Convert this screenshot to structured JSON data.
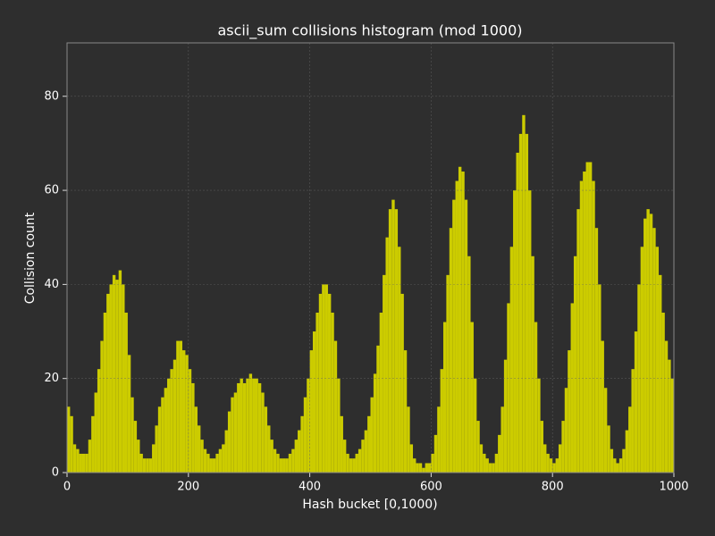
{
  "chart_data": {
    "type": "histogram",
    "title": "ascii_sum collisions histogram (mod 1000)",
    "x_label": "Hash bucket [0,1000)",
    "y_label": "Collision count",
    "color": "#cccc00",
    "grid": true,
    "xlim": [
      0,
      1000
    ],
    "ylim": [
      0,
      91.35
    ],
    "xticks": [
      0,
      200,
      400,
      600,
      800,
      1000
    ],
    "yticks": [
      0,
      20,
      40,
      60,
      80
    ],
    "bins": [
      0,
      5,
      10,
      15,
      20,
      25,
      30,
      35,
      40,
      45,
      50,
      55,
      60,
      65,
      70,
      75,
      80,
      85,
      90,
      95,
      100,
      105,
      110,
      115,
      120,
      125,
      130,
      135,
      140,
      145,
      150,
      155,
      160,
      165,
      170,
      175,
      180,
      185,
      190,
      195,
      200,
      205,
      210,
      215,
      220,
      225,
      230,
      235,
      240,
      245,
      250,
      255,
      260,
      265,
      270,
      275,
      280,
      285,
      290,
      295,
      300,
      305,
      310,
      315,
      320,
      325,
      330,
      335,
      340,
      345,
      350,
      355,
      360,
      365,
      370,
      375,
      380,
      385,
      390,
      395,
      400,
      405,
      410,
      415,
      420,
      425,
      430,
      435,
      440,
      445,
      450,
      455,
      460,
      465,
      470,
      475,
      480,
      485,
      490,
      495,
      500,
      505,
      510,
      515,
      520,
      525,
      530,
      535,
      540,
      545,
      550,
      555,
      560,
      565,
      570,
      575,
      580,
      585,
      590,
      595,
      600,
      605,
      610,
      615,
      620,
      625,
      630,
      635,
      640,
      645,
      650,
      655,
      660,
      665,
      670,
      675,
      680,
      685,
      690,
      695,
      700,
      705,
      710,
      715,
      720,
      725,
      730,
      735,
      740,
      745,
      750,
      755,
      760,
      765,
      770,
      775,
      780,
      785,
      790,
      795,
      800,
      805,
      810,
      815,
      820,
      825,
      830,
      835,
      840,
      845,
      850,
      855,
      860,
      865,
      870,
      875,
      880,
      885,
      890,
      895,
      900,
      905,
      910,
      915,
      920,
      925,
      930,
      935,
      940,
      945,
      950,
      955,
      960,
      965,
      970,
      975,
      980,
      985,
      990,
      995,
      1000
    ],
    "counts": [
      14,
      12,
      6,
      5,
      4,
      4,
      4,
      7,
      12,
      17,
      22,
      28,
      34,
      38,
      40,
      42,
      41,
      43,
      40,
      34,
      25,
      16,
      11,
      7,
      4,
      3,
      3,
      3,
      6,
      10,
      14,
      16,
      18,
      20,
      22,
      24,
      28,
      28,
      26,
      25,
      22,
      19,
      14,
      10,
      7,
      5,
      4,
      3,
      3,
      4,
      5,
      6,
      9,
      13,
      16,
      17,
      19,
      20,
      19,
      20,
      21,
      20,
      20,
      19,
      17,
      14,
      10,
      7,
      5,
      4,
      3,
      3,
      3,
      4,
      5,
      7,
      9,
      12,
      16,
      20,
      26,
      30,
      34,
      38,
      40,
      40,
      38,
      34,
      28,
      20,
      12,
      7,
      4,
      3,
      3,
      4,
      5,
      7,
      9,
      12,
      16,
      21,
      27,
      34,
      42,
      50,
      56,
      58,
      56,
      48,
      38,
      26,
      14,
      6,
      3,
      2,
      2,
      1,
      2,
      2,
      4,
      8,
      14,
      22,
      32,
      42,
      52,
      58,
      62,
      65,
      64,
      58,
      46,
      32,
      20,
      11,
      6,
      4,
      3,
      2,
      2,
      4,
      8,
      14,
      24,
      36,
      48,
      60,
      68,
      72,
      76,
      72,
      60,
      46,
      32,
      20,
      11,
      6,
      4,
      3,
      2,
      3,
      6,
      11,
      18,
      26,
      36,
      46,
      56,
      62,
      64,
      66,
      66,
      62,
      52,
      40,
      28,
      18,
      10,
      5,
      3,
      2,
      3,
      5,
      9,
      14,
      22,
      30,
      40,
      48,
      54,
      56,
      55,
      52,
      48,
      42,
      34,
      28,
      24,
      20
    ]
  }
}
